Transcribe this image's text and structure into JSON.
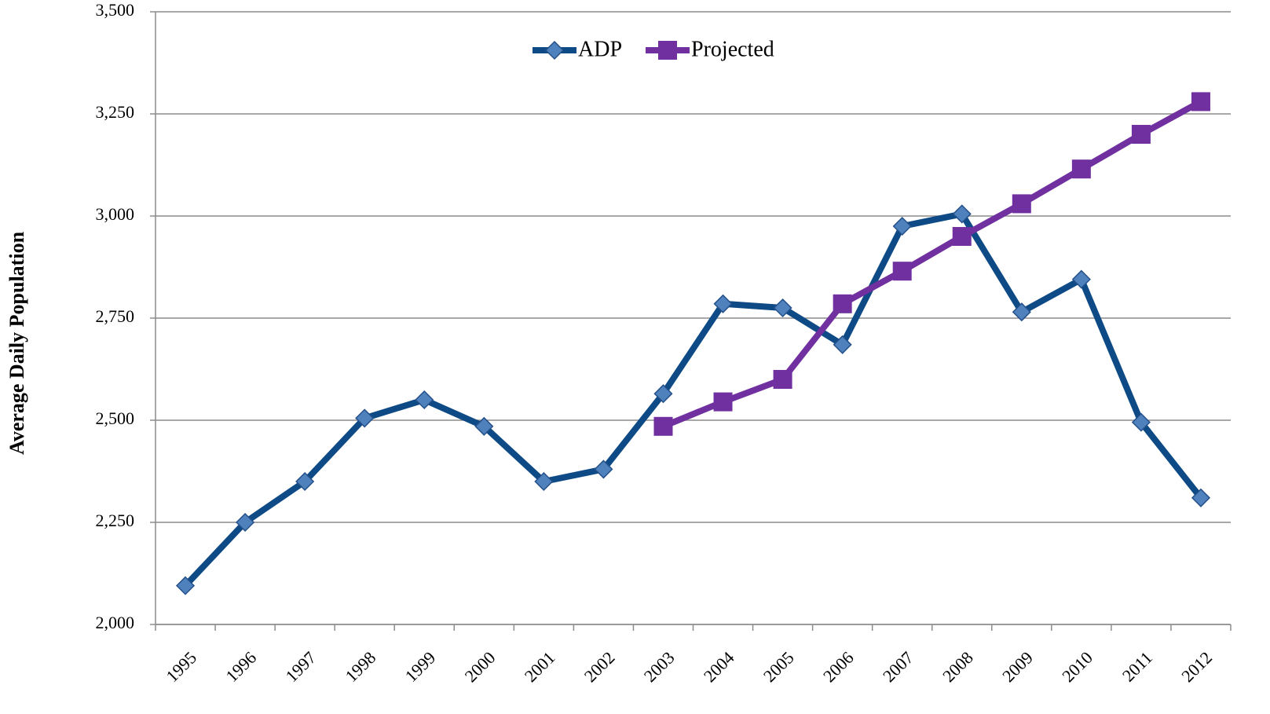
{
  "chart_data": {
    "type": "line",
    "y_label": "Average Daily Population",
    "categories": [
      "1995",
      "1996",
      "1997",
      "1998",
      "1999",
      "2000",
      "2001",
      "2002",
      "2003",
      "2004",
      "2005",
      "2006",
      "2007",
      "2008",
      "2009",
      "2010",
      "2011",
      "2012"
    ],
    "series": [
      {
        "name": "ADP",
        "color": "#0e4a85",
        "marker_color": "#4f81bd",
        "marker": "diamond",
        "values": [
          2095,
          2250,
          2350,
          2505,
          2550,
          2485,
          2350,
          2380,
          2565,
          2785,
          2775,
          2685,
          2975,
          3005,
          2765,
          2845,
          2495,
          2310
        ]
      },
      {
        "name": "Projected",
        "color": "#7030a0",
        "marker_color": "#7030a0",
        "marker": "square",
        "values": [
          null,
          null,
          null,
          null,
          null,
          null,
          null,
          null,
          2485,
          2545,
          2600,
          2785,
          2865,
          2950,
          3030,
          3115,
          3200,
          3280
        ]
      }
    ],
    "ylim": [
      2000,
      3500
    ],
    "yticks": [
      {
        "value": 2000,
        "label": "2,000"
      },
      {
        "value": 2250,
        "label": "2,250"
      },
      {
        "value": 2500,
        "label": "2,500"
      },
      {
        "value": 2750,
        "label": "2,750"
      },
      {
        "value": 3000,
        "label": "3,000"
      },
      {
        "value": 3250,
        "label": "3,250"
      },
      {
        "value": 3500,
        "label": "3,500"
      }
    ],
    "grid": true,
    "legend": "top"
  }
}
